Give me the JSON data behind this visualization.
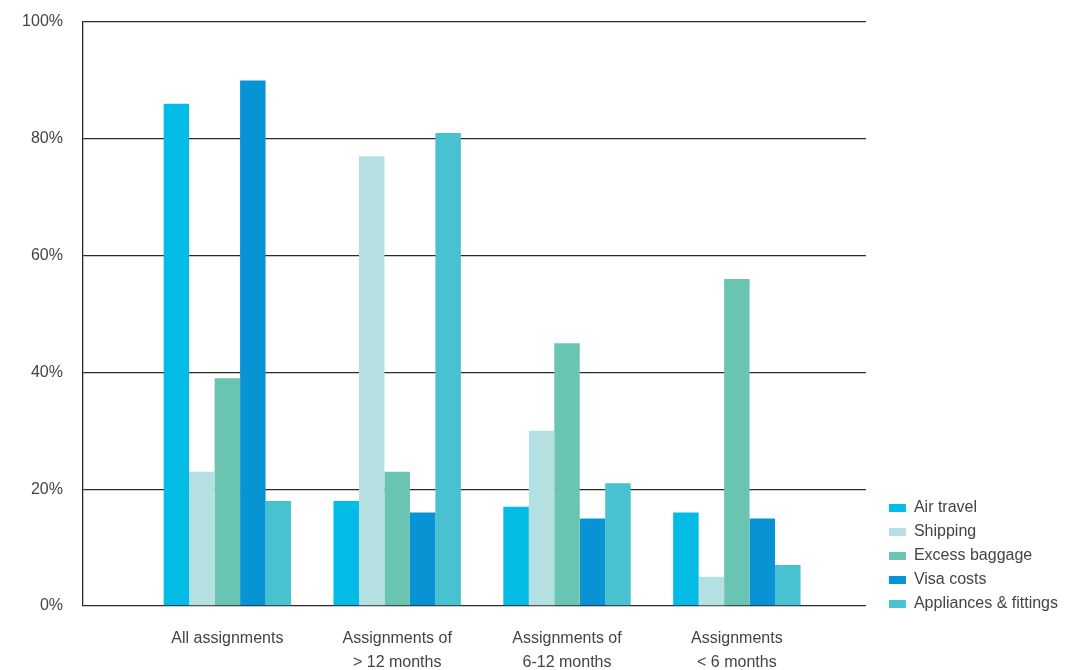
{
  "chart_data": {
    "type": "bar",
    "categories": [
      "All assignments",
      "Assignments of\n> 12 months",
      "Assignments of\n6-12 months",
      "Assignments\n< 6 months"
    ],
    "series": [
      {
        "name": "Air travel",
        "color": "#03bbe4",
        "values": [
          86,
          18,
          17,
          16
        ]
      },
      {
        "name": "Shipping",
        "color": "#b5e0e1",
        "values": [
          23,
          77,
          30,
          5
        ]
      },
      {
        "name": "Excess baggage",
        "color": "#69c5b2",
        "values": [
          39,
          23,
          45,
          56
        ]
      },
      {
        "name": "Visa costs",
        "color": "#0893d4",
        "values": [
          90,
          16,
          15,
          15
        ]
      },
      {
        "name": "Appliances & fittings",
        "color": "#48c2d0",
        "values": [
          18,
          81,
          21,
          7
        ]
      }
    ],
    "ylim": [
      0,
      100
    ],
    "yticks": [
      {
        "value": 0,
        "label": "0%"
      },
      {
        "value": 20,
        "label": "20%"
      },
      {
        "value": 40,
        "label": "40%"
      },
      {
        "value": 60,
        "label": "60%"
      },
      {
        "value": 80,
        "label": "80%"
      },
      {
        "value": 100,
        "label": "100%"
      }
    ],
    "grid": "y",
    "legend": "bottom right"
  }
}
